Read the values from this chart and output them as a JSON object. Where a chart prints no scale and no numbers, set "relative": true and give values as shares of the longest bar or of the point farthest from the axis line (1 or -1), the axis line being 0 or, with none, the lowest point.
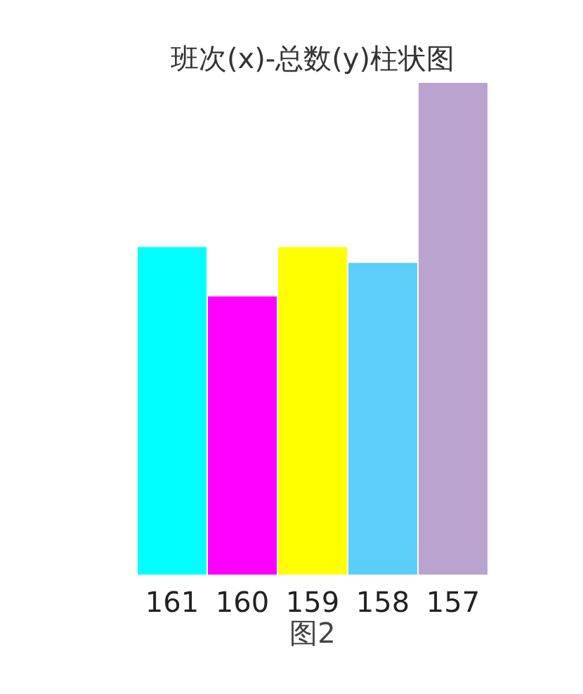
{
  "chart_data": {
    "type": "bar",
    "title": "班次(x)-总数(y)柱状图",
    "xlabel": "图2",
    "relative": true,
    "categories": [
      "161",
      "160",
      "159",
      "158",
      "157"
    ],
    "values": [
      0.667,
      0.567,
      0.667,
      0.635,
      1
    ],
    "colors": [
      "#00ffff",
      "#ff00ff",
      "#ffff00",
      "#5bcefa",
      "#bba3d0"
    ]
  }
}
